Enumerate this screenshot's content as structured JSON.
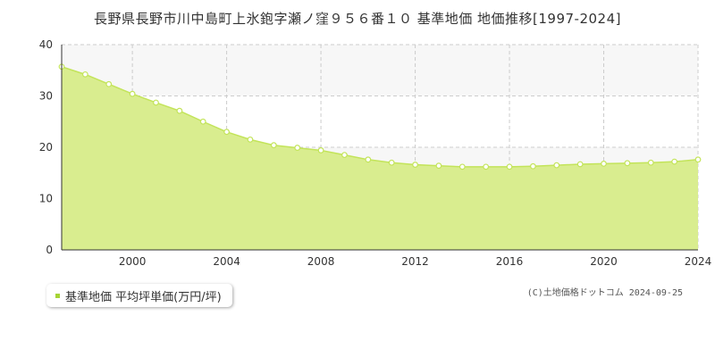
{
  "title": "長野県長野市川中島町上氷鉋字瀬ノ窪９５６番１０ 基準地価 地価推移[1997-2024]",
  "legend": {
    "label": "基準地価 平均坪単価(万円/坪)"
  },
  "credit": "(C)土地価格ドットコム 2024-09-25",
  "colors": {
    "fill": "#d9ed8f",
    "line": "#c3e45a",
    "marker": "#a6d435",
    "band": "#f7f7f7",
    "grid": "#cccccc"
  },
  "chart_data": {
    "type": "area",
    "title": "長野県長野市川中島町上氷鉋字瀬ノ窪９５６番１０ 基準地価 地価推移[1997-2024]",
    "xlabel": "",
    "ylabel": "",
    "xlim": [
      1997,
      2024
    ],
    "ylim": [
      0,
      40
    ],
    "x_ticks": [
      2000,
      2004,
      2008,
      2012,
      2016,
      2020,
      2024
    ],
    "y_ticks": [
      0,
      10,
      20,
      30,
      40
    ],
    "grid": true,
    "legend_position": "bottom-left",
    "series": [
      {
        "name": "基準地価 平均坪単価(万円/坪)",
        "x": [
          1997,
          1998,
          1999,
          2000,
          2001,
          2002,
          2003,
          2004,
          2005,
          2006,
          2007,
          2008,
          2009,
          2010,
          2011,
          2012,
          2013,
          2014,
          2015,
          2016,
          2017,
          2018,
          2019,
          2020,
          2021,
          2022,
          2023,
          2024
        ],
        "values": [
          35.7,
          34.2,
          32.3,
          30.4,
          28.7,
          27.1,
          25.0,
          23.0,
          21.5,
          20.4,
          19.9,
          19.4,
          18.5,
          17.6,
          17.0,
          16.6,
          16.4,
          16.2,
          16.2,
          16.2,
          16.3,
          16.5,
          16.7,
          16.8,
          16.9,
          17.0,
          17.2,
          17.6
        ]
      }
    ]
  }
}
